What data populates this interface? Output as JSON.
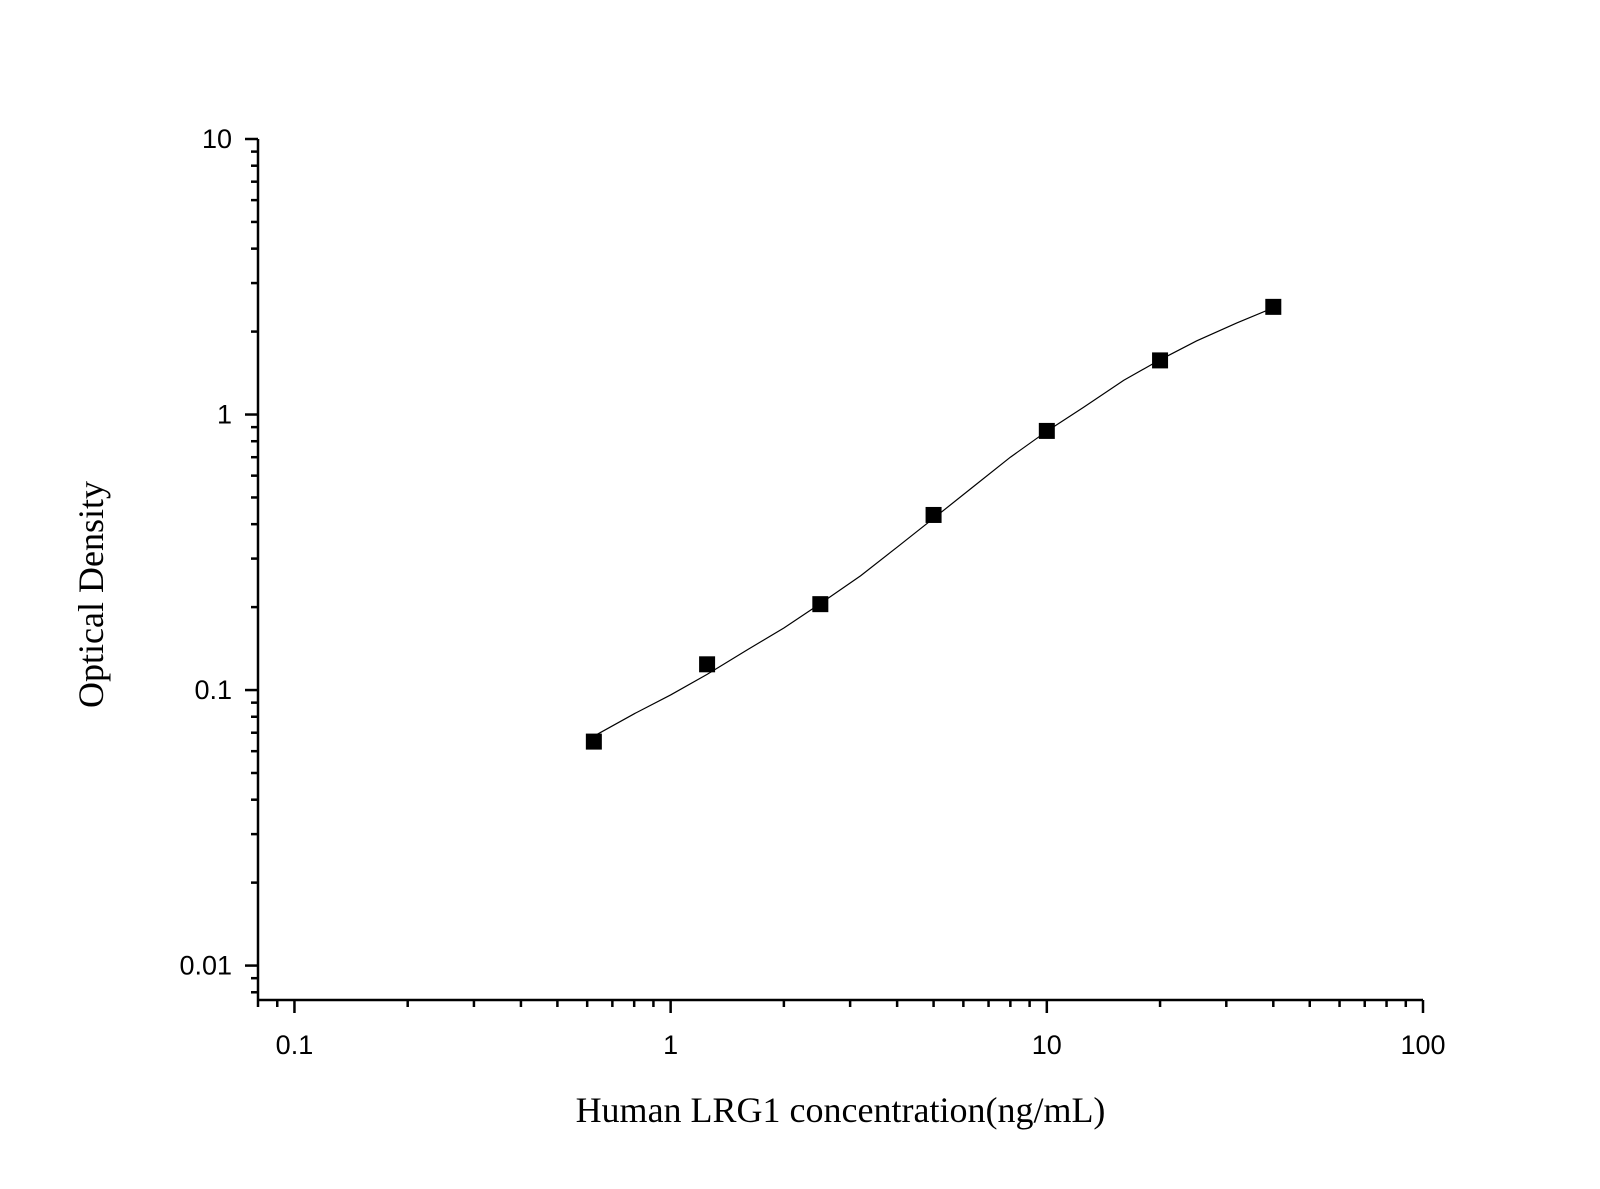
{
  "chart_data": {
    "type": "scatter",
    "title": "",
    "xlabel": "Human LRG1 concentration(ng/mL)",
    "ylabel": "Optical Density",
    "xscale": "log",
    "yscale": "log",
    "xlim": [
      0.08,
      100
    ],
    "ylim": [
      0.0075,
      10
    ],
    "x_ticks": [
      0.1,
      1,
      10,
      100
    ],
    "x_tick_labels": [
      "0.1",
      "1",
      "10",
      "100"
    ],
    "y_ticks": [
      0.01,
      0.1,
      1,
      10
    ],
    "y_tick_labels": [
      "0.01",
      "0.1",
      "1",
      "10"
    ],
    "grid": false,
    "legend": "none",
    "series": [
      {
        "name": "Standard",
        "marker": "square",
        "x": [
          0.625,
          1.25,
          2.5,
          5,
          10,
          20,
          40
        ],
        "y": [
          0.065,
          0.124,
          0.205,
          0.432,
          0.872,
          1.572,
          2.459
        ]
      }
    ],
    "fit_curve": {
      "name": "Fit",
      "x": [
        0.625,
        0.8,
        1,
        1.25,
        1.6,
        2,
        2.5,
        3.2,
        4,
        5,
        6.3,
        8,
        10,
        12.5,
        16,
        20,
        25,
        32,
        40
      ],
      "y": [
        0.068,
        0.082,
        0.096,
        0.114,
        0.14,
        0.168,
        0.206,
        0.26,
        0.33,
        0.42,
        0.54,
        0.7,
        0.87,
        1.06,
        1.33,
        1.58,
        1.85,
        2.15,
        2.44
      ]
    }
  }
}
